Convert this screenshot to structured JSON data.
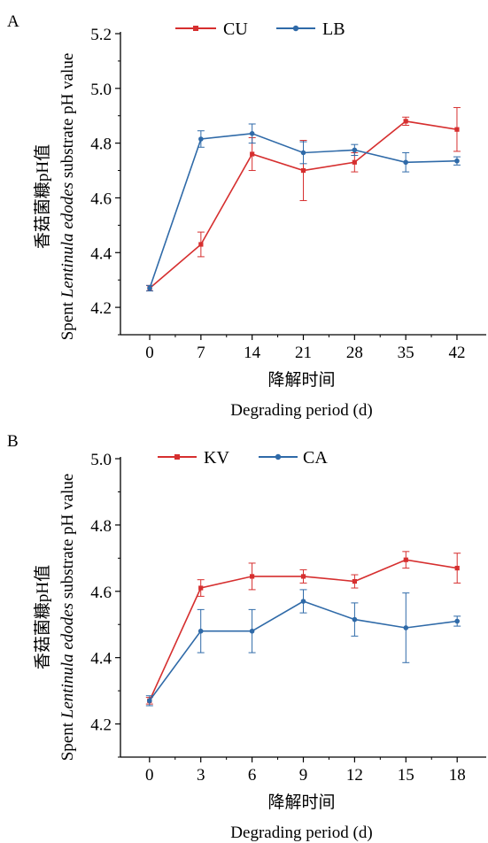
{
  "colors": {
    "red": "#d62f2f",
    "blue": "#2f6aa8",
    "axis": "#000000"
  },
  "chart_data": [
    {
      "type": "line",
      "panel_label": "A",
      "x": [
        0,
        7,
        14,
        21,
        28,
        35,
        42
      ],
      "xlim": [
        -4,
        46
      ],
      "ylim": [
        4.1,
        5.2
      ],
      "yticks": [
        "4.2",
        "4.4",
        "4.6",
        "4.8",
        "5.0",
        "5.2"
      ],
      "ytick_values": [
        4.2,
        4.4,
        4.6,
        4.8,
        5.0,
        5.2
      ],
      "xtick_labels": [
        "0",
        "7",
        "14",
        "21",
        "28",
        "35",
        "42"
      ],
      "ylabel_cn": "香菇菌糠pH值",
      "ylabel_en": [
        "Spent ",
        "Lentinula edodes",
        " substrate pH value"
      ],
      "xlabel_cn": "降解时间",
      "xlabel_en": "Degrading period (d)",
      "legend_position": "top",
      "series": [
        {
          "name": "CU",
          "color": "red",
          "values": [
            4.27,
            4.43,
            4.76,
            4.7,
            4.73,
            4.88,
            4.85
          ],
          "errors": [
            0.01,
            0.045,
            0.06,
            0.11,
            0.035,
            0.015,
            0.08
          ]
        },
        {
          "name": "LB",
          "color": "blue",
          "values": [
            4.27,
            4.815,
            4.835,
            4.765,
            4.775,
            4.73,
            4.735
          ],
          "errors": [
            0.01,
            0.03,
            0.035,
            0.04,
            0.02,
            0.035,
            0.015
          ]
        }
      ]
    },
    {
      "type": "line",
      "panel_label": "B",
      "x": [
        0,
        3,
        6,
        9,
        12,
        15,
        18
      ],
      "xlim": [
        -1.7,
        19.7
      ],
      "ylim": [
        4.1,
        5.0
      ],
      "yticks": [
        "4.2",
        "4.4",
        "4.6",
        "4.8",
        "5.0"
      ],
      "ytick_values": [
        4.2,
        4.4,
        4.6,
        4.8,
        5.0
      ],
      "xtick_labels": [
        "0",
        "3",
        "6",
        "9",
        "12",
        "15",
        "18"
      ],
      "ylabel_cn": "香菇菌糠pH值",
      "ylabel_en": [
        "Spent ",
        "Lentinula edodes",
        " substrate pH value"
      ],
      "xlabel_cn": "降解时间",
      "xlabel_en": "Degrading period (d)",
      "legend_position": "top",
      "series": [
        {
          "name": "KV",
          "color": "red",
          "values": [
            4.27,
            4.61,
            4.645,
            4.645,
            4.63,
            4.695,
            4.67
          ],
          "errors": [
            0.01,
            0.025,
            0.04,
            0.02,
            0.02,
            0.025,
            0.045
          ]
        },
        {
          "name": "CA",
          "color": "blue",
          "values": [
            4.27,
            4.48,
            4.48,
            4.57,
            4.515,
            4.49,
            4.51
          ],
          "errors": [
            0.015,
            0.065,
            0.065,
            0.035,
            0.05,
            0.105,
            0.015
          ]
        }
      ]
    }
  ]
}
